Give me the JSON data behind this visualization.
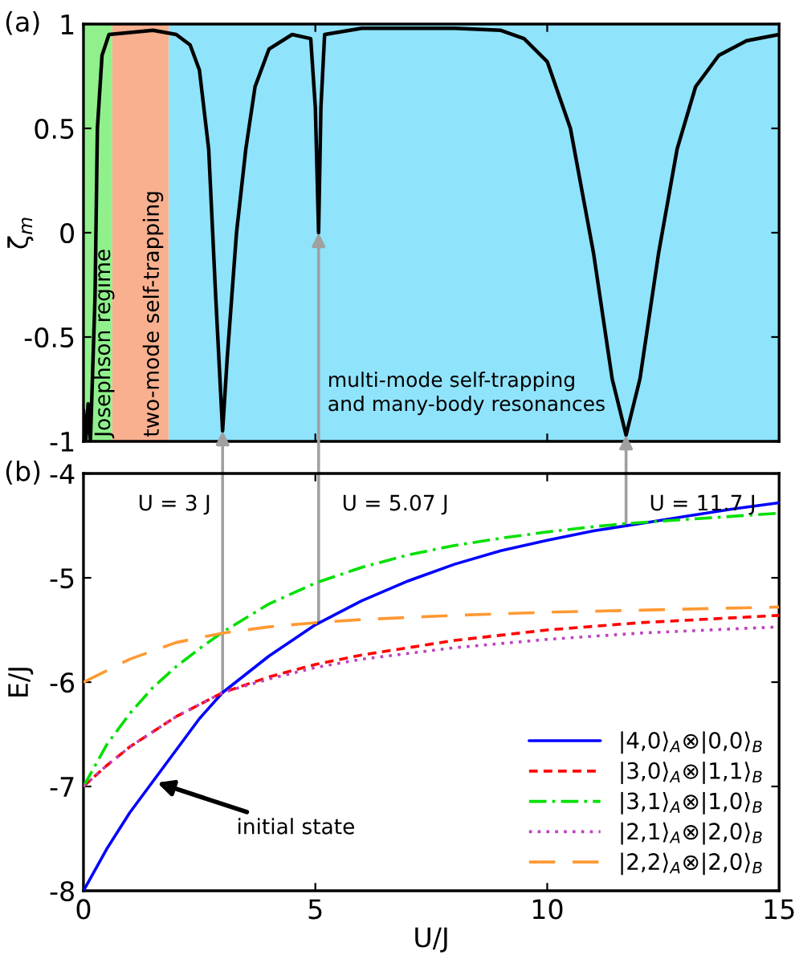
{
  "chart_data": [
    {
      "type": "line",
      "ylabel": "ζ$_{m}$",
      "annotations": [
        "(a)"
      ],
      "xlim": [
        0,
        15
      ],
      "ylim": [
        -1,
        1
      ],
      "xticks": [
        0,
        5,
        10,
        15
      ],
      "yticks": [
        -1,
        -0.5,
        0,
        0.5,
        1
      ],
      "tick_labels": "y",
      "grid": false,
      "legend": false,
      "bands": [
        {
          "axis": "x",
          "from": 0,
          "to": 0.62,
          "label": "Josephson regime",
          "color": "#90f08c"
        },
        {
          "axis": "x",
          "from": 0.62,
          "to": 1.84,
          "label": "two-mode self-trapping",
          "color": "#f9b08f"
        },
        {
          "axis": "x",
          "from": 1.84,
          "to": 15,
          "label": "multi-mode self-trapping\nand many-body resonances",
          "color": "#8fe3fb"
        }
      ],
      "series": [
        {
          "color": "#000000",
          "line_style": "solid",
          "x": [
            0,
            0.05,
            0.1,
            0.15,
            0.25,
            0.3,
            0.4,
            0.55,
            1.5,
            2.0,
            2.3,
            2.5,
            2.7,
            2.85,
            3.0,
            3.1,
            3.2,
            3.3,
            3.5,
            3.7,
            4.0,
            4.5,
            4.9,
            5.0,
            5.07,
            5.12,
            5.2,
            6,
            8,
            9,
            9.5,
            10,
            10.5,
            11,
            11.4,
            11.7,
            12.0,
            12.4,
            12.8,
            13.2,
            13.7,
            14.3,
            15
          ],
          "values": [
            -0.85,
            -1,
            -0.82,
            -1,
            -0.3,
            0.5,
            0.85,
            0.95,
            0.97,
            0.95,
            0.9,
            0.78,
            0.4,
            -0.3,
            -0.95,
            -0.6,
            -0.3,
            0.0,
            0.4,
            0.7,
            0.88,
            0.95,
            0.93,
            0.6,
            0.0,
            0.6,
            0.95,
            0.98,
            0.98,
            0.97,
            0.93,
            0.82,
            0.5,
            -0.1,
            -0.7,
            -0.97,
            -0.7,
            -0.1,
            0.4,
            0.7,
            0.85,
            0.92,
            0.95
          ]
        }
      ]
    },
    {
      "type": "line",
      "xlabel": "U/J",
      "ylabel": "E/J",
      "annotations": [
        "(b)",
        {
          "text": "initial state",
          "x": 1.5,
          "y": -6.95
        }
      ],
      "ref_lines": [
        {
          "axis": "x",
          "value": 3,
          "label": "U = 3 J",
          "color": "#a0a0a0"
        },
        {
          "axis": "x",
          "value": 5.07,
          "label": "U = 5.07 J",
          "color": "#a0a0a0"
        },
        {
          "axis": "x",
          "value": 11.7,
          "label": "U = 11.7 J",
          "color": "#a0a0a0"
        }
      ],
      "xlim": [
        0,
        15
      ],
      "ylim": [
        -8,
        -4
      ],
      "xticks": [
        0,
        5,
        10,
        15
      ],
      "yticks": [
        -8,
        -7,
        -6,
        -5,
        -4
      ],
      "grid": false,
      "legend": "bottom right",
      "series": [
        {
          "name": "|4,0⟩$_{A}$⊗|0,0⟩$_{B}$",
          "color": "#0000ff",
          "line_style": "solid",
          "x": [
            0,
            0.5,
            1,
            1.5,
            2,
            2.5,
            3,
            4,
            5,
            6,
            7,
            8,
            9,
            10,
            11,
            12,
            13,
            14,
            15
          ],
          "values": [
            -8,
            -7.6,
            -7.25,
            -6.95,
            -6.65,
            -6.35,
            -6.1,
            -5.75,
            -5.45,
            -5.22,
            -5.03,
            -4.87,
            -4.74,
            -4.64,
            -4.55,
            -4.48,
            -4.41,
            -4.34,
            -4.28
          ]
        },
        {
          "name": "|3,0⟩$_{A}$⊗|1,1⟩$_{B}$",
          "color": "#ff0000",
          "line_style": "dashed",
          "x": [
            0,
            0.5,
            1,
            2,
            3,
            4,
            5,
            6,
            8,
            10,
            12,
            15
          ],
          "values": [
            -7,
            -6.8,
            -6.62,
            -6.33,
            -6.1,
            -5.95,
            -5.83,
            -5.74,
            -5.6,
            -5.5,
            -5.43,
            -5.36
          ]
        },
        {
          "name": "|3,1⟩$_{A}$⊗|1,0⟩$_{B}$",
          "color": "#00e000",
          "line_style": "dashdot",
          "x": [
            0,
            0.5,
            1,
            1.5,
            2,
            2.5,
            3,
            4,
            5,
            6,
            7,
            8,
            9,
            10,
            11,
            11.7,
            13,
            14,
            15
          ],
          "values": [
            -7,
            -6.6,
            -6.3,
            -6.05,
            -5.85,
            -5.68,
            -5.52,
            -5.25,
            -5.05,
            -4.9,
            -4.78,
            -4.69,
            -4.62,
            -4.56,
            -4.51,
            -4.48,
            -4.44,
            -4.41,
            -4.38
          ]
        },
        {
          "name": "|2,1⟩$_{A}$⊗|2,0⟩$_{B}$",
          "color": "#bf40bf",
          "line_style": "dotted",
          "x": [
            0,
            0.5,
            1,
            2,
            3,
            4,
            5,
            6,
            8,
            10,
            12,
            15
          ],
          "values": [
            -7,
            -6.8,
            -6.62,
            -6.33,
            -6.1,
            -5.97,
            -5.86,
            -5.78,
            -5.67,
            -5.59,
            -5.53,
            -5.47
          ]
        },
        {
          "name": "|2,2⟩$_{A}$⊗|2,0⟩$_{B}$",
          "color": "#ff9933",
          "line_style": "longdash",
          "x": [
            0,
            1,
            2,
            3,
            4,
            5,
            6,
            8,
            10,
            12,
            15
          ],
          "values": [
            -6,
            -5.78,
            -5.62,
            -5.53,
            -5.47,
            -5.43,
            -5.4,
            -5.36,
            -5.33,
            -5.31,
            -5.28
          ]
        }
      ]
    }
  ]
}
